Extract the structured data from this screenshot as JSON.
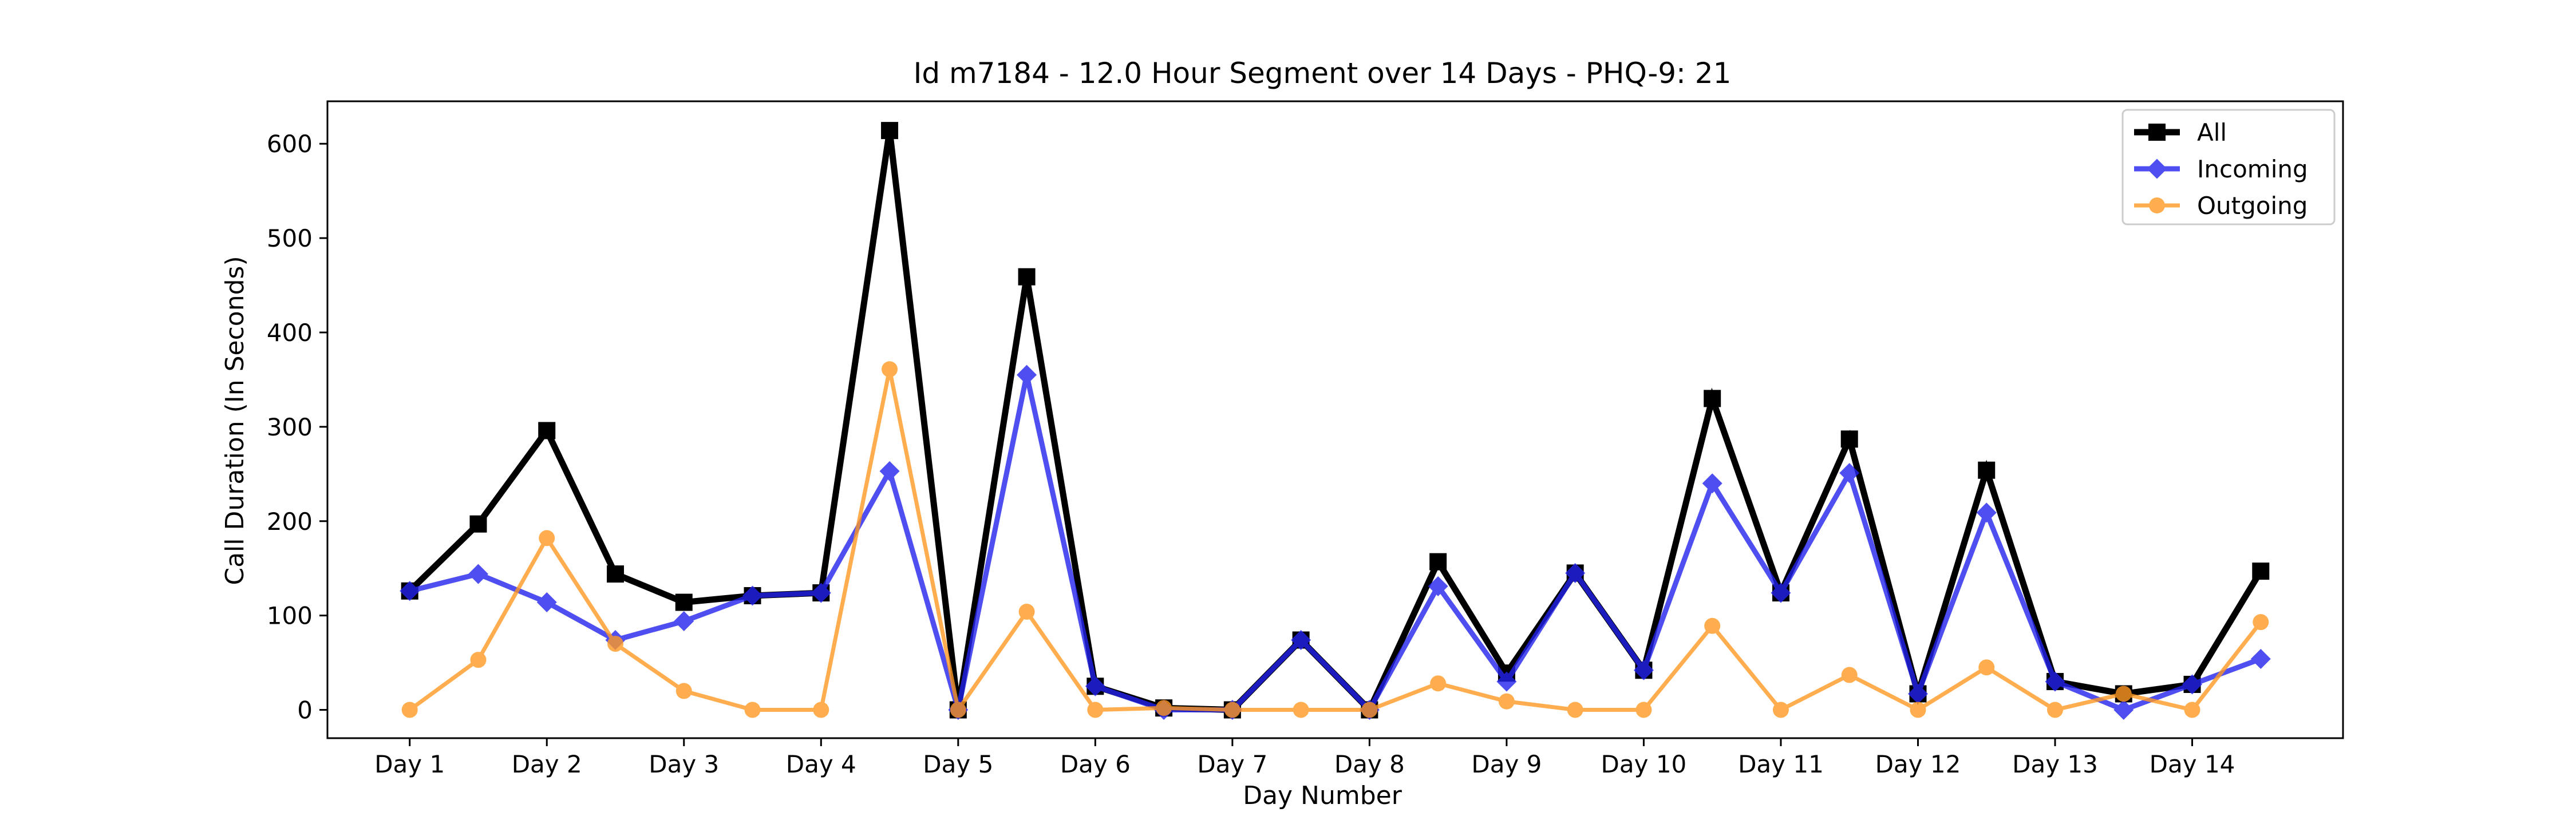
{
  "chart_data": {
    "type": "line",
    "title": "Id m7184 - 12.0 Hour Segment over 14 Days - PHQ-9: 21",
    "xlabel": "Day Number",
    "ylabel": "Call Duration (In Seconds)",
    "x": [
      1,
      1.5,
      2,
      2.5,
      3,
      3.5,
      4,
      4.5,
      5,
      5.5,
      6,
      6.5,
      7,
      7.5,
      8,
      8.5,
      9,
      9.5,
      10,
      10.5,
      11,
      11.5,
      12,
      12.5,
      13,
      13.5,
      14,
      14.5
    ],
    "xlim": [
      0.4,
      15.1
    ],
    "ylim": [
      -30,
      645
    ],
    "x_ticks": [
      {
        "value": 1,
        "label": "Day 1"
      },
      {
        "value": 2,
        "label": "Day 2"
      },
      {
        "value": 3,
        "label": "Day 3"
      },
      {
        "value": 4,
        "label": "Day 4"
      },
      {
        "value": 5,
        "label": "Day 5"
      },
      {
        "value": 6,
        "label": "Day 6"
      },
      {
        "value": 7,
        "label": "Day 7"
      },
      {
        "value": 8,
        "label": "Day 8"
      },
      {
        "value": 9,
        "label": "Day 9"
      },
      {
        "value": 10,
        "label": "Day 10"
      },
      {
        "value": 11,
        "label": "Day 11"
      },
      {
        "value": 12,
        "label": "Day 12"
      },
      {
        "value": 13,
        "label": "Day 13"
      },
      {
        "value": 14,
        "label": "Day 14"
      }
    ],
    "y_ticks": [
      {
        "value": 0,
        "label": "0"
      },
      {
        "value": 100,
        "label": "100"
      },
      {
        "value": 200,
        "label": "200"
      },
      {
        "value": 300,
        "label": "300"
      },
      {
        "value": 400,
        "label": "400"
      },
      {
        "value": 500,
        "label": "500"
      },
      {
        "value": 600,
        "label": "600"
      }
    ],
    "grid": false,
    "legend": "top-right",
    "series": [
      {
        "name": "All",
        "color": "#000000",
        "marker": "square",
        "values": [
          126,
          197,
          296,
          144,
          114,
          121,
          124,
          614,
          0,
          459,
          25,
          2,
          0,
          74,
          0,
          157,
          39,
          145,
          42,
          330,
          124,
          287,
          17,
          254,
          30,
          17,
          27,
          147
        ]
      },
      {
        "name": "Incoming",
        "color": "#2222ee",
        "marker": "diamond",
        "values": [
          126,
          144,
          114,
          74,
          94,
          121,
          124,
          253,
          0,
          355,
          25,
          0,
          0,
          74,
          0,
          131,
          30,
          145,
          42,
          240,
          124,
          251,
          17,
          209,
          30,
          0,
          27,
          54
        ]
      },
      {
        "name": "Outgoing",
        "color": "#ff9922",
        "marker": "circle",
        "values": [
          0,
          53,
          182,
          70,
          20,
          0,
          0,
          361,
          0,
          104,
          0,
          2,
          0,
          0,
          0,
          28,
          9,
          0,
          0,
          89,
          0,
          37,
          0,
          45,
          0,
          17,
          0,
          93
        ]
      }
    ]
  }
}
